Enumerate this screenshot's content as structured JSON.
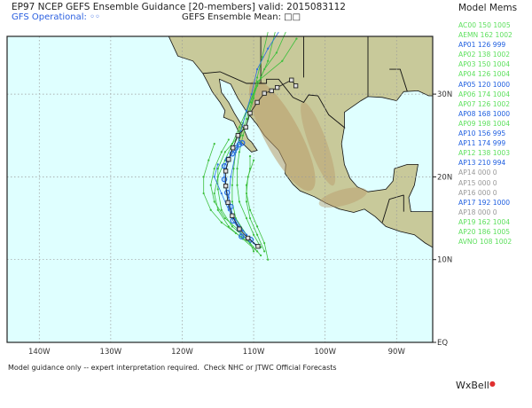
{
  "header": {
    "title": "EP97 NCEP GEFS Ensemble Guidance [20-members] valid: 2015083112",
    "gfs_operational": "GFS Operational: ◦◦",
    "ensemble_mean": "GEFS Ensemble Mean: □□"
  },
  "legend": {
    "title": "Model Mems",
    "items": [
      {
        "label": "AC00 150 1005",
        "color": "#5ee05e"
      },
      {
        "label": "AEMN 162 1002",
        "color": "#5ee05e"
      },
      {
        "label": "AP01 126 999",
        "color": "#1f5fe0"
      },
      {
        "label": "AP02 138 1002",
        "color": "#5ee05e"
      },
      {
        "label": "AP03 150 1004",
        "color": "#5ee05e"
      },
      {
        "label": "AP04 126 1004",
        "color": "#5ee05e"
      },
      {
        "label": "AP05 120 1000",
        "color": "#1f5fe0"
      },
      {
        "label": "AP06 174 1004",
        "color": "#5ee05e"
      },
      {
        "label": "AP07 126 1002",
        "color": "#5ee05e"
      },
      {
        "label": "AP08 168 1000",
        "color": "#1f5fe0"
      },
      {
        "label": "AP09 198 1004",
        "color": "#5ee05e"
      },
      {
        "label": "AP10 156 995",
        "color": "#1f5fe0"
      },
      {
        "label": "AP11 174 999",
        "color": "#1f5fe0"
      },
      {
        "label": "AP12 138 1003",
        "color": "#5ee05e"
      },
      {
        "label": "AP13 210 994",
        "color": "#1f5fe0"
      },
      {
        "label": "AP14 000 0",
        "color": "#999999"
      },
      {
        "label": "AP15 000 0",
        "color": "#999999"
      },
      {
        "label": "AP16 000 0",
        "color": "#999999"
      },
      {
        "label": "AP17 192 1000",
        "color": "#1f5fe0"
      },
      {
        "label": "AP18 000 0",
        "color": "#999999"
      },
      {
        "label": "AP19 162 1004",
        "color": "#5ee05e"
      },
      {
        "label": "AP20 186 1005",
        "color": "#5ee05e"
      },
      {
        "label": "AVNO 108 1002",
        "color": "#5ee05e"
      }
    ]
  },
  "map": {
    "lon_labels": [
      {
        "lon": -140,
        "text": "140W"
      },
      {
        "lon": -130,
        "text": "130W"
      },
      {
        "lon": -120,
        "text": "120W"
      },
      {
        "lon": -110,
        "text": "110W"
      },
      {
        "lon": -100,
        "text": "100W"
      },
      {
        "lon": -90,
        "text": "90W"
      }
    ],
    "lat_labels": [
      {
        "lat": 30,
        "text": "30N"
      },
      {
        "lat": 20,
        "text": "20N"
      },
      {
        "lat": 10,
        "text": "10N"
      },
      {
        "lat": 0,
        "text": "EQ"
      }
    ],
    "colors": {
      "ocean": "#dfffff",
      "land": "#c8c99a",
      "highland": "#b99a6a",
      "green_member": "#3cbf3c",
      "blue_member": "#2a6fe0",
      "mean": "#222222"
    },
    "mean_track": [
      [
        -104.1,
        31
      ],
      [
        -104.7,
        31.7
      ],
      [
        -106.7,
        30.8
      ],
      [
        -107.5,
        30.4
      ],
      [
        -108.5,
        30.1
      ],
      [
        -109.5,
        29
      ],
      [
        -110.5,
        27.7
      ],
      [
        -111.1,
        26
      ],
      [
        -112.2,
        25
      ],
      [
        -112.9,
        23.5
      ],
      [
        -113.5,
        22.1
      ],
      [
        -113.9,
        20.7
      ],
      [
        -113.9,
        18.9
      ],
      [
        -113.6,
        16.9
      ],
      [
        -113,
        15.3
      ],
      [
        -112,
        13.7
      ],
      [
        -110.8,
        12.6
      ],
      [
        -109.4,
        11.6
      ]
    ],
    "gfs_track": [
      [
        -111.6,
        24.1
      ],
      [
        -112,
        23.9
      ],
      [
        -112.5,
        23.5
      ],
      [
        -113,
        22.8
      ],
      [
        -113.6,
        22.1
      ],
      [
        -114.1,
        21.3
      ],
      [
        -114.1,
        19.7
      ],
      [
        -113.7,
        18.1
      ],
      [
        -113.2,
        16.4
      ],
      [
        -112.9,
        14.7
      ],
      [
        -112,
        13.7
      ],
      [
        -111.7,
        12.8
      ],
      [
        -110.4,
        12.4
      ]
    ],
    "green_tracks": [
      [
        [
          -109,
          10.5
        ],
        [
          -110.5,
          12
        ],
        [
          -112,
          13.5
        ],
        [
          -114,
          15
        ],
        [
          -115.5,
          17
        ],
        [
          -116,
          19
        ],
        [
          -115.5,
          21
        ],
        [
          -114.5,
          23
        ],
        [
          -113.5,
          24.5
        ]
      ],
      [
        [
          -109.5,
          11
        ],
        [
          -111.5,
          12.5
        ],
        [
          -113.5,
          14
        ],
        [
          -115,
          16
        ],
        [
          -115.5,
          18
        ],
        [
          -115,
          20
        ],
        [
          -114,
          22
        ],
        [
          -113,
          24
        ],
        [
          -112,
          26
        ],
        [
          -111,
          28
        ],
        [
          -110,
          30
        ],
        [
          -109,
          32
        ],
        [
          -108,
          34
        ],
        [
          -107,
          37.5
        ]
      ],
      [
        [
          -108.5,
          11
        ],
        [
          -109.5,
          13
        ],
        [
          -110.5,
          15
        ],
        [
          -111,
          17
        ],
        [
          -111,
          19
        ],
        [
          -110.5,
          21
        ],
        [
          -110.5,
          22.5
        ]
      ],
      [
        [
          -110,
          11
        ],
        [
          -111,
          13
        ],
        [
          -112.5,
          15
        ],
        [
          -113,
          17
        ],
        [
          -113,
          19
        ],
        [
          -112.8,
          21
        ],
        [
          -112.5,
          23
        ],
        [
          -111.8,
          25
        ],
        [
          -111,
          27
        ],
        [
          -110.3,
          29
        ],
        [
          -109.5,
          31
        ],
        [
          -108.5,
          33
        ],
        [
          -106.8,
          35
        ],
        [
          -105.5,
          37.5
        ]
      ],
      [
        [
          -109,
          11.5
        ],
        [
          -110,
          13
        ],
        [
          -111,
          15
        ],
        [
          -112,
          17
        ],
        [
          -112.3,
          19
        ],
        [
          -112.3,
          21
        ],
        [
          -112,
          23
        ],
        [
          -111.5,
          25
        ],
        [
          -110.8,
          27
        ],
        [
          -110,
          29.5
        ],
        [
          -109.5,
          32
        ],
        [
          -108.8,
          34.5
        ],
        [
          -108,
          37.5
        ]
      ],
      [
        [
          -110.5,
          12
        ],
        [
          -112.5,
          13.2
        ],
        [
          -114.5,
          14.5
        ],
        [
          -116,
          16
        ],
        [
          -117,
          18
        ],
        [
          -117,
          20
        ],
        [
          -116.3,
          22
        ],
        [
          -115.5,
          24
        ]
      ],
      [
        [
          -108,
          10
        ],
        [
          -108.5,
          12
        ],
        [
          -109.5,
          14
        ],
        [
          -110.5,
          16
        ],
        [
          -111,
          18
        ],
        [
          -110.8,
          20
        ],
        [
          -110,
          22
        ]
      ],
      [
        [
          -111,
          12.5
        ],
        [
          -113,
          14
        ],
        [
          -114.5,
          16
        ],
        [
          -115,
          18.5
        ],
        [
          -115,
          21
        ],
        [
          -114,
          23
        ],
        [
          -112.5,
          24.5
        ],
        [
          -111.5,
          26.5
        ],
        [
          -110.5,
          29
        ],
        [
          -109.5,
          31.5
        ],
        [
          -106,
          34
        ],
        [
          -104,
          36.7
        ]
      ]
    ],
    "blue_tracks": [
      [
        [
          -109.5,
          11.5
        ],
        [
          -111,
          13
        ],
        [
          -112.5,
          14.5
        ],
        [
          -113.5,
          16
        ],
        [
          -114.5,
          18
        ],
        [
          -115.5,
          20
        ],
        [
          -115,
          21.5
        ]
      ],
      [
        [
          -110,
          12
        ],
        [
          -111.5,
          13.5
        ],
        [
          -113,
          15.5
        ],
        [
          -113.5,
          17.5
        ],
        [
          -113.2,
          20
        ],
        [
          -112.5,
          23
        ],
        [
          -111.8,
          25.5
        ],
        [
          -111,
          28
        ],
        [
          -110.3,
          30
        ],
        [
          -109.5,
          33
        ],
        [
          -108,
          35.5
        ],
        [
          -106.5,
          37.5
        ]
      ]
    ]
  },
  "footer": {
    "disclaimer": "Model guidance only -- expert interpretation required.  Check NHC or JTWC Official Forecasts",
    "logo": "WxBell"
  }
}
